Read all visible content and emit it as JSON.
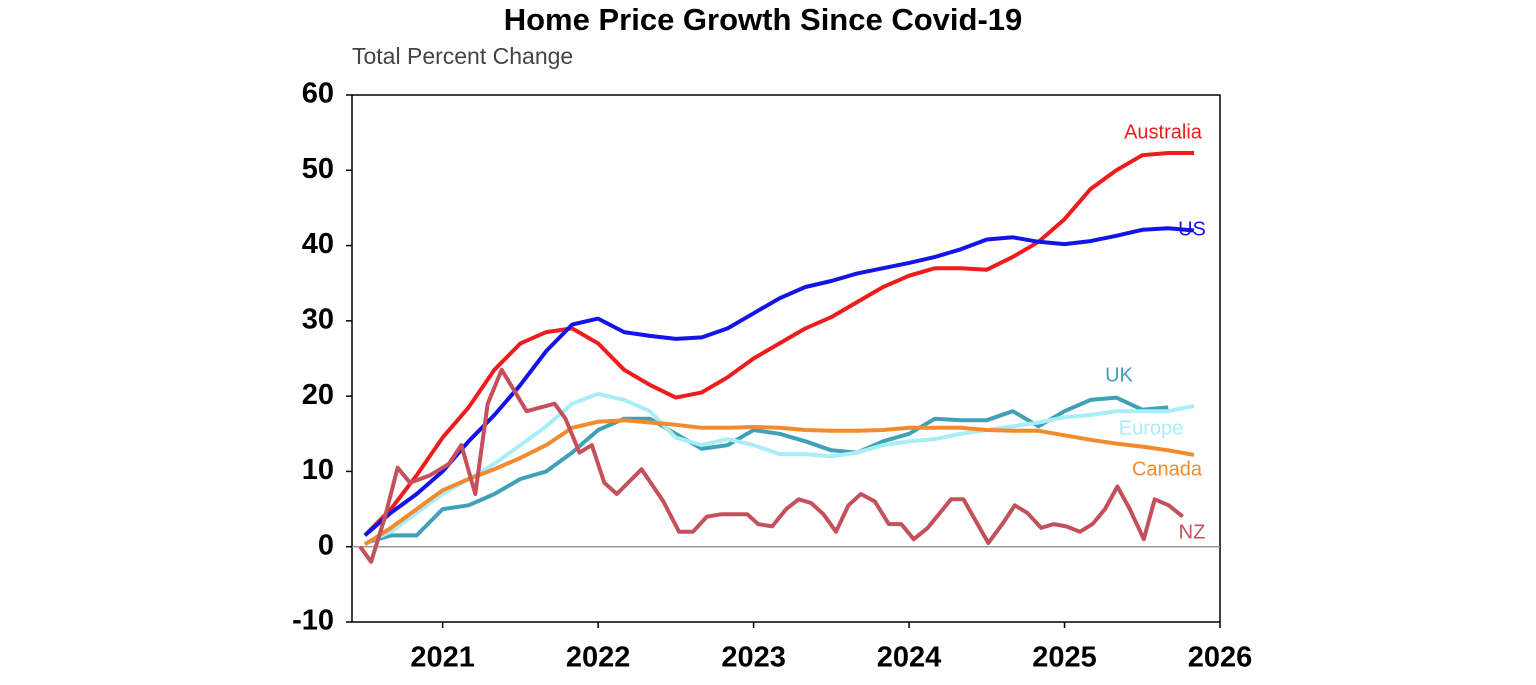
{
  "chart_data": {
    "type": "line",
    "title": "Home Price Growth Since Covid-19",
    "subtitle": "Total Percent Change",
    "x": [
      2020.5,
      2020.667,
      2020.833,
      2021.0,
      2021.167,
      2021.333,
      2021.5,
      2021.667,
      2021.833,
      2022.0,
      2022.167,
      2022.333,
      2022.5,
      2022.667,
      2022.833,
      2023.0,
      2023.167,
      2023.333,
      2023.5,
      2023.667,
      2023.833,
      2024.0,
      2024.167,
      2024.333,
      2024.5,
      2024.667,
      2024.833,
      2025.0,
      2025.167,
      2025.333,
      2025.5,
      2025.667,
      2025.833
    ],
    "series": [
      {
        "name": "Australia",
        "color": "#ee1c1c",
        "values": [
          1.5,
          5,
          9.5,
          14.5,
          18.5,
          23.5,
          27,
          28.5,
          29,
          27,
          23.5,
          21.5,
          19.8,
          20.5,
          22.5,
          25,
          27,
          29,
          30.5,
          32.5,
          34.5,
          36,
          37,
          37,
          36.8,
          38.5,
          40.5,
          43.5,
          47.5,
          50,
          52,
          52.3,
          52.3
        ]
      },
      {
        "name": "US",
        "color": "#1414e6",
        "values": [
          1.5,
          4.5,
          7,
          10,
          14,
          17.5,
          21.5,
          26,
          29.5,
          30.3,
          28.5,
          28,
          27.6,
          27.8,
          29,
          31,
          33,
          34.5,
          35.3,
          36.3,
          37,
          37.7,
          38.5,
          39.5,
          40.8,
          41.1,
          40.5,
          40.2,
          40.6,
          41.3,
          42.1,
          42.3,
          42
        ]
      },
      {
        "name": "UK",
        "color": "#3fa0b8",
        "values": [
          0.5,
          1.5,
          1.5,
          5,
          5.5,
          7,
          9,
          10,
          12.5,
          15.5,
          17,
          17,
          15,
          13,
          13.5,
          15.5,
          15,
          14,
          12.8,
          12.5,
          14,
          15,
          17,
          16.8,
          16.8,
          18,
          16,
          18,
          19.5,
          19.8,
          18.2,
          18.5,
          null
        ]
      },
      {
        "name": "Europe",
        "color": "#a8eef6",
        "values": [
          0.5,
          2,
          4.5,
          7,
          9,
          11,
          13.5,
          16,
          19,
          20.3,
          19.5,
          18,
          14.5,
          13.5,
          14.3,
          13.5,
          12.3,
          12.3,
          12,
          12.5,
          13.5,
          14,
          14.3,
          15,
          15.5,
          16,
          16.5,
          17.2,
          17.5,
          18,
          18,
          18,
          18.7
        ]
      },
      {
        "name": "Canada",
        "color": "#f28a2e",
        "values": [
          0.3,
          2.5,
          5,
          7.5,
          9,
          10.3,
          11.8,
          13.5,
          15.8,
          16.6,
          16.8,
          16.5,
          16.2,
          15.8,
          15.8,
          15.9,
          15.8,
          15.5,
          15.4,
          15.4,
          15.5,
          15.8,
          15.8,
          15.8,
          15.5,
          15.4,
          15.4,
          14.8,
          14.2,
          13.7,
          13.3,
          12.8,
          12.2
        ]
      },
      {
        "name": "NZ",
        "color": "#c4505c",
        "x": [
          2020.47,
          2020.54,
          2020.63,
          2020.71,
          2020.79,
          2020.92,
          2021.04,
          2021.12,
          2021.21,
          2021.29,
          2021.38,
          2021.54,
          2021.72,
          2021.79,
          2021.88,
          2021.96,
          2022.04,
          2022.12,
          2022.28,
          2022.42,
          2022.52,
          2022.61,
          2022.7,
          2022.79,
          2022.96,
          2023.03,
          2023.12,
          2023.21,
          2023.29,
          2023.37,
          2023.45,
          2023.53,
          2023.61,
          2023.69,
          2023.78,
          2023.87,
          2023.95,
          2024.03,
          2024.12,
          2024.27,
          2024.35,
          2024.51,
          2024.6,
          2024.68,
          2024.76,
          2024.85,
          2024.93,
          2025.01,
          2025.1,
          2025.18,
          2025.26,
          2025.34,
          2025.42,
          2025.51,
          2025.58,
          2025.67,
          2025.76
        ],
        "values": [
          0,
          -2,
          4,
          10.5,
          8.5,
          9.5,
          11,
          13.5,
          7,
          19,
          23.5,
          18,
          19,
          17,
          12.5,
          13.5,
          8.5,
          7,
          10.3,
          6,
          2,
          2,
          4,
          4.3,
          4.3,
          3,
          2.7,
          5,
          6.3,
          5.8,
          4.3,
          2,
          5.5,
          7,
          6,
          3,
          3,
          1,
          2.5,
          6.3,
          6.3,
          0.5,
          3,
          5.5,
          4.5,
          2.5,
          3,
          2.7,
          2,
          3,
          5,
          8,
          5,
          1,
          6.3,
          5.5,
          4
        ]
      }
    ],
    "xlim": [
      2020.417,
      2026.0
    ],
    "xticks": [
      2021,
      2022,
      2023,
      2024,
      2025,
      2026
    ],
    "ylim": [
      -10,
      60
    ],
    "yticks": [
      -10,
      0,
      10,
      20,
      30,
      40,
      50,
      60
    ]
  }
}
